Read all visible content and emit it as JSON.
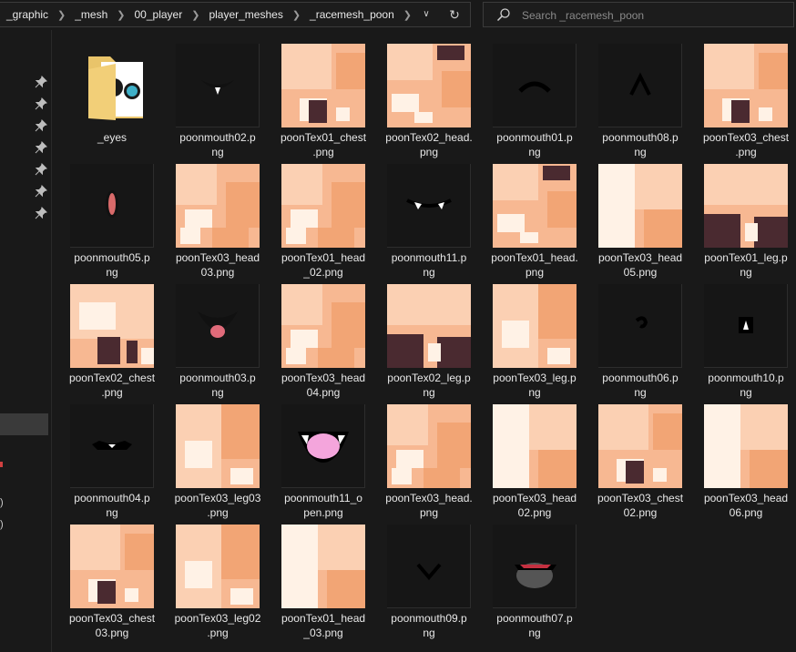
{
  "breadcrumb": [
    "_graphic",
    "_mesh",
    "00_player",
    "player_meshes",
    "_racemesh_poon"
  ],
  "search": {
    "placeholder": "Search _racemesh_poon"
  },
  "nav": {
    "marks": [
      ")",
      ")"
    ]
  },
  "files": [
    {
      "name": "_eyes",
      "kind": "folder"
    },
    {
      "name": "poonmouth02.png",
      "kind": "mouth",
      "glyph": "teeth"
    },
    {
      "name": "poonTex01_chest.png",
      "kind": "tex",
      "variant": "chest"
    },
    {
      "name": "poonTex02_head.png",
      "kind": "tex",
      "variant": "head-dark"
    },
    {
      "name": "poonmouth01.png",
      "kind": "mouth",
      "glyph": "frown"
    },
    {
      "name": "poonmouth08.png",
      "kind": "mouth",
      "glyph": "caret"
    },
    {
      "name": "poonTex03_chest.png",
      "kind": "tex",
      "variant": "chest"
    },
    {
      "name": "poonmouth05.png",
      "kind": "mouth",
      "glyph": "oval-red"
    },
    {
      "name": "poonTex03_head03.png",
      "kind": "tex",
      "variant": "head"
    },
    {
      "name": "poonTex01_head_02.png",
      "kind": "tex",
      "variant": "head"
    },
    {
      "name": "poonmouth11.png",
      "kind": "mouth",
      "glyph": "fangs"
    },
    {
      "name": "poonTex01_head.png",
      "kind": "tex",
      "variant": "head-dark"
    },
    {
      "name": "poonTex03_head05.png",
      "kind": "tex",
      "variant": "head-light"
    },
    {
      "name": "poonTex01_leg.png",
      "kind": "tex",
      "variant": "leg-dark"
    },
    {
      "name": "poonTex02_chest.png",
      "kind": "tex",
      "variant": "chest-light"
    },
    {
      "name": "poonmouth03.png",
      "kind": "mouth",
      "glyph": "open-red"
    },
    {
      "name": "poonTex03_head04.png",
      "kind": "tex",
      "variant": "head"
    },
    {
      "name": "poonTex02_leg.png",
      "kind": "tex",
      "variant": "leg-dark"
    },
    {
      "name": "poonTex03_leg.png",
      "kind": "tex",
      "variant": "leg"
    },
    {
      "name": "poonmouth06.png",
      "kind": "mouth",
      "glyph": "curl"
    },
    {
      "name": "poonmouth10.png",
      "kind": "mouth",
      "glyph": "small-tooth"
    },
    {
      "name": "poonmouth04.png",
      "kind": "mouth",
      "glyph": "flat-teeth"
    },
    {
      "name": "poonTex03_leg03.png",
      "kind": "tex",
      "variant": "leg"
    },
    {
      "name": "poonmouth11_open.png",
      "kind": "mouth",
      "glyph": "open-pink"
    },
    {
      "name": "poonTex03_head.png",
      "kind": "tex",
      "variant": "head"
    },
    {
      "name": "poonTex03_head02.png",
      "kind": "tex",
      "variant": "head-light"
    },
    {
      "name": "poonTex03_chest02.png",
      "kind": "tex",
      "variant": "chest"
    },
    {
      "name": "poonTex03_head06.png",
      "kind": "tex",
      "variant": "head-light"
    },
    {
      "name": "poonTex03_chest03.png",
      "kind": "tex",
      "variant": "chest"
    },
    {
      "name": "poonTex03_leg02.png",
      "kind": "tex",
      "variant": "leg"
    },
    {
      "name": "poonTex01_head_03.png",
      "kind": "tex",
      "variant": "head-light"
    },
    {
      "name": "poonmouth09.png",
      "kind": "mouth",
      "glyph": "vee"
    },
    {
      "name": "poonmouth07.png",
      "kind": "mouth",
      "glyph": "grin-dark"
    }
  ],
  "labels": [
    [
      "_eyes"
    ],
    [
      "poonmouth02.p",
      "ng"
    ],
    [
      "poonTex01_chest",
      ".png"
    ],
    [
      "poonTex02_head.",
      "png"
    ],
    [
      "poonmouth01.p",
      "ng"
    ],
    [
      "poonmouth08.p",
      "ng"
    ],
    [
      "poonTex03_chest",
      ".png"
    ],
    [
      "poonmouth05.p",
      "ng"
    ],
    [
      "poonTex03_head",
      "03.png"
    ],
    [
      "poonTex01_head",
      "_02.png"
    ],
    [
      "poonmouth11.p",
      "ng"
    ],
    [
      "poonTex01_head.",
      "png"
    ],
    [
      "poonTex03_head",
      "05.png"
    ],
    [
      "poonTex01_leg.p",
      "ng"
    ],
    [
      "poonTex02_chest",
      ".png"
    ],
    [
      "poonmouth03.p",
      "ng"
    ],
    [
      "poonTex03_head",
      "04.png"
    ],
    [
      "poonTex02_leg.p",
      "ng"
    ],
    [
      "poonTex03_leg.p",
      "ng"
    ],
    [
      "poonmouth06.p",
      "ng"
    ],
    [
      "poonmouth10.p",
      "ng"
    ],
    [
      "poonmouth04.p",
      "ng"
    ],
    [
      "poonTex03_leg03",
      ".png"
    ],
    [
      "poonmouth11_o",
      "pen.png"
    ],
    [
      "poonTex03_head.",
      "png"
    ],
    [
      "poonTex03_head",
      "02.png"
    ],
    [
      "poonTex03_chest",
      "02.png"
    ],
    [
      "poonTex03_head",
      "06.png"
    ],
    [
      "poonTex03_chest",
      "03.png"
    ],
    [
      "poonTex03_leg02",
      ".png"
    ],
    [
      "poonTex01_head",
      "_03.png"
    ],
    [
      "poonmouth09.p",
      "ng"
    ],
    [
      "poonmouth07.p",
      "ng"
    ]
  ],
  "colors": {
    "background": "#191919",
    "skin": "#f7b892",
    "skin_light": "#fbd0b3",
    "dark_patch": "#4a2a30",
    "folder": "#e9c46a"
  }
}
